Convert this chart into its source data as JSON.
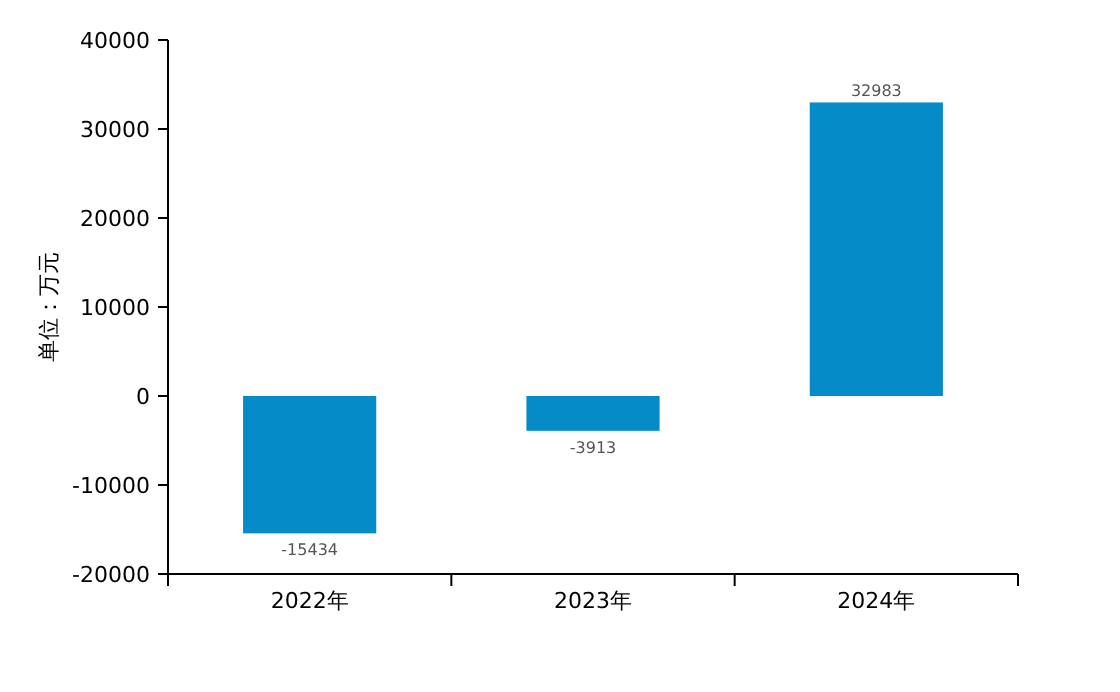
{
  "chart_data": {
    "type": "bar",
    "ylabel": "单位：万元",
    "categories": [
      "2022年",
      "2023年",
      "2024年"
    ],
    "values": [
      -15434,
      -3913,
      32983
    ],
    "color": "#058bc7",
    "ylim": [
      -20000,
      40000
    ],
    "yticks": [
      -20000,
      -10000,
      0,
      10000,
      20000,
      30000,
      40000
    ],
    "data_labels": true
  }
}
